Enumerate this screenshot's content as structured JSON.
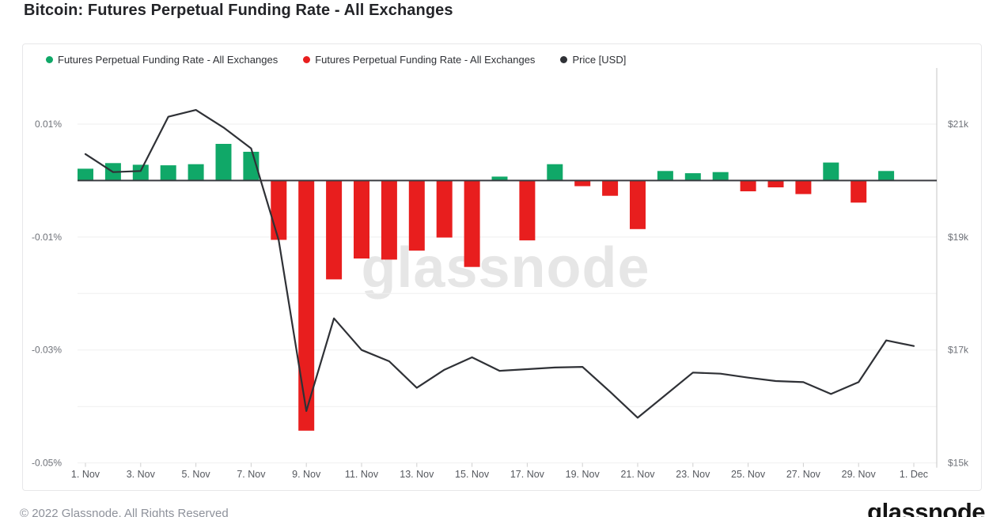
{
  "title": "Bitcoin: Futures Perpetual Funding Rate - All Exchanges",
  "legend": {
    "items": [
      {
        "label": "Futures Perpetual Funding Rate - All Exchanges",
        "color_key": "positive"
      },
      {
        "label": "Futures Perpetual Funding Rate - All Exchanges",
        "color_key": "negative"
      },
      {
        "label": "Price [USD]",
        "color_key": "price"
      }
    ]
  },
  "watermark": "glassnode",
  "footer": {
    "copyright": "© 2022 Glassnode. All Rights Reserved",
    "brand": "glassnode"
  },
  "colors": {
    "positive": "#10A868",
    "negative": "#E81E1E",
    "price": "#2F3136",
    "zero_line": "#3A3B40",
    "grid": "#EFEFEF",
    "axis": "#CFCFCF"
  },
  "chart_data": {
    "type": "bar",
    "title": "Bitcoin: Futures Perpetual Funding Rate - All Exchanges",
    "categories": [
      "1. Nov",
      "2. Nov",
      "3. Nov",
      "4. Nov",
      "5. Nov",
      "6. Nov",
      "7. Nov",
      "8. Nov",
      "9. Nov",
      "10. Nov",
      "11. Nov",
      "12. Nov",
      "13. Nov",
      "14. Nov",
      "15. Nov",
      "16. Nov",
      "17. Nov",
      "18. Nov",
      "19. Nov",
      "20. Nov",
      "21. Nov",
      "22. Nov",
      "23. Nov",
      "24. Nov",
      "25. Nov",
      "26. Nov",
      "27. Nov",
      "28. Nov",
      "29. Nov",
      "30. Nov",
      "1. Dec"
    ],
    "series": [
      {
        "name": "Futures Perpetual Funding Rate - All Exchanges",
        "type": "column",
        "unit": "%",
        "values": [
          0.0021,
          0.0031,
          0.0028,
          0.0027,
          0.0029,
          0.0065,
          0.0051,
          -0.0105,
          -0.0443,
          -0.0175,
          -0.0138,
          -0.014,
          -0.0124,
          -0.0101,
          -0.0153,
          0.0007,
          -0.0106,
          0.0029,
          -0.001,
          -0.0027,
          -0.0086,
          0.0017,
          0.0013,
          0.0015,
          -0.0019,
          -0.0012,
          -0.0024,
          0.0032,
          -0.0039,
          0.0017,
          null
        ]
      },
      {
        "name": "Price [USD]",
        "type": "line",
        "unit": "USD",
        "values": [
          20470,
          20150,
          20170,
          21130,
          21250,
          20940,
          20570,
          18940,
          15920,
          17560,
          17000,
          16800,
          16330,
          16650,
          16870,
          16630,
          16660,
          16690,
          16700,
          16260,
          15800,
          16200,
          16600,
          16580,
          16510,
          16450,
          16430,
          16220,
          16430,
          17170,
          17070
        ]
      }
    ],
    "y_axis_left": {
      "tick_labels": [
        "0.01%",
        "-0.01%",
        "-0.03%",
        "-0.05%"
      ],
      "ticks_percent": [
        0.01,
        -0.01,
        -0.03,
        -0.05
      ],
      "range_percent": [
        -0.052,
        0.02
      ]
    },
    "y_axis_right": {
      "tick_labels": [
        "$21k",
        "$19k",
        "$17k",
        "$15k"
      ],
      "ticks_usd": [
        21000,
        19000,
        17000,
        15000
      ],
      "range_usd": [
        14800,
        22000
      ]
    },
    "x_tick_labels": [
      "1. Nov",
      "3. Nov",
      "5. Nov",
      "7. Nov",
      "9. Nov",
      "11. Nov",
      "13. Nov",
      "15. Nov",
      "17. Nov",
      "19. Nov",
      "21. Nov",
      "23. Nov",
      "25. Nov",
      "27. Nov",
      "29. Nov",
      "1. Dec"
    ],
    "grid": true,
    "legend_position": "top"
  }
}
